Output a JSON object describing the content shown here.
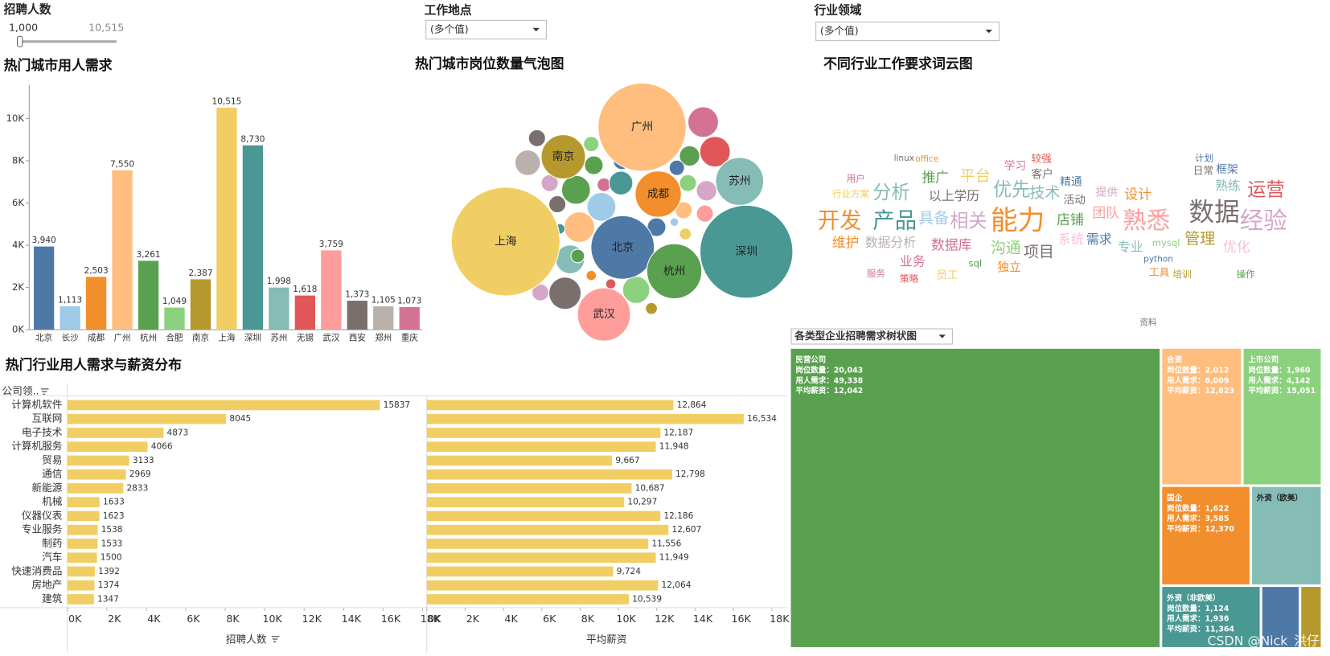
{
  "filters": {
    "recruit_count": {
      "label": "招聘人数",
      "range": [
        {
          "value": 1000,
          "label": "1,000"
        },
        {
          "value": 10515,
          "label": "10,515"
        }
      ]
    },
    "location": {
      "label": "工作地点",
      "value": "(多个值)"
    },
    "industry": {
      "label": "行业领域",
      "value": "(多个值)"
    }
  },
  "chart_data": [
    {
      "type": "bar",
      "title": "热门城市用人需求",
      "categories": [
        "北京",
        "长沙",
        "成都",
        "广州",
        "杭州",
        "合肥",
        "南京",
        "上海",
        "深圳",
        "苏州",
        "无锡",
        "武汉",
        "西安",
        "郑州",
        "重庆"
      ],
      "values": [
        3940,
        1113,
        2503,
        7550,
        3261,
        1049,
        2387,
        10515,
        8730,
        1998,
        1618,
        3759,
        1373,
        1105,
        1073
      ],
      "value_labels": [
        "3,940",
        "1,113",
        "2,503",
        "7,550",
        "3,261",
        "1,049",
        "2,387",
        "10,515",
        "8,730",
        "1,998",
        "1,618",
        "3,759",
        "1,373",
        "1,105",
        "1,073"
      ],
      "colors": [
        "#4e79a7",
        "#a0cbe8",
        "#f28e2b",
        "#ffbe7d",
        "#59a14f",
        "#8cd17d",
        "#b6992d",
        "#f1ce63",
        "#499894",
        "#86bcb6",
        "#e15759",
        "#ff9d9a",
        "#79706e",
        "#bab0ac",
        "#d37295"
      ],
      "ylim": [
        0,
        11600
      ],
      "yticks": [
        {
          "value": 0,
          "label": "0K"
        },
        {
          "value": 2000,
          "label": "2K"
        },
        {
          "value": 4000,
          "label": "4K"
        },
        {
          "value": 6000,
          "label": "6K"
        },
        {
          "value": 8000,
          "label": "8K"
        },
        {
          "value": 10000,
          "label": "10K"
        }
      ]
    },
    {
      "type": "bubble",
      "title": "热门城市岗位数量气泡图",
      "categories": [
        "上海",
        "深圳",
        "广州",
        "北京",
        "杭州",
        "武汉",
        "苏州",
        "成都",
        "南京"
      ],
      "values": [
        4100,
        3000,
        2700,
        1400,
        1050,
        980,
        800,
        740,
        680
      ],
      "colors": [
        "#f1ce63",
        "#499894",
        "#ffbe7d",
        "#4e79a7",
        "#59a14f",
        "#ff9d9a",
        "#86bcb6",
        "#f28e2b",
        "#b6992d"
      ]
    },
    {
      "type": "wordcloud",
      "title": "不同行业工作要求词云图",
      "words": [
        {
          "text": "开发",
          "color": "#f28e2b"
        },
        {
          "text": "产品",
          "color": "#499894"
        },
        {
          "text": "能力",
          "color": "#f28e2b"
        },
        {
          "text": "熟悉",
          "color": "#ff9d9a"
        },
        {
          "text": "数据",
          "color": "#79706e"
        },
        {
          "text": "经验",
          "color": "#d4a6c8"
        },
        {
          "text": "相关",
          "color": "#d4a6c8"
        },
        {
          "text": "具备",
          "color": "#a0cbe8"
        },
        {
          "text": "分析",
          "color": "#86bcb6"
        },
        {
          "text": "优先",
          "color": "#86bcb6"
        },
        {
          "text": "技术",
          "color": "#86bcb6"
        },
        {
          "text": "运营",
          "color": "#e15759"
        },
        {
          "text": "平台",
          "color": "#f1ce63"
        },
        {
          "text": "推广",
          "color": "#59a14f"
        },
        {
          "text": "以上学历",
          "color": "#79706e"
        },
        {
          "text": "团队",
          "color": "#ff9d9a"
        },
        {
          "text": "店铺",
          "color": "#59a14f"
        },
        {
          "text": "管理",
          "color": "#b6992d"
        },
        {
          "text": "优化",
          "color": "#fabfd2"
        },
        {
          "text": "项目",
          "color": "#79706e"
        },
        {
          "text": "沟通",
          "color": "#8cd17d"
        },
        {
          "text": "数据分析",
          "color": "#bab0ac"
        },
        {
          "text": "数据库",
          "color": "#d37295"
        },
        {
          "text": "维护",
          "color": "#f28e2b"
        },
        {
          "text": "需求",
          "color": "#4e79a7"
        },
        {
          "text": "专业",
          "color": "#86bcb6"
        },
        {
          "text": "业务",
          "color": "#d37295"
        },
        {
          "text": "独立",
          "color": "#f28e2b"
        },
        {
          "text": "设计",
          "color": "#f28e2b"
        },
        {
          "text": "熟练",
          "color": "#86bcb6"
        },
        {
          "text": "客户",
          "color": "#79706e"
        },
        {
          "text": "学习",
          "color": "#d37295"
        },
        {
          "text": "较强",
          "color": "#e15759"
        },
        {
          "text": "精通",
          "color": "#4e79a7"
        },
        {
          "text": "活动",
          "color": "#79706e"
        },
        {
          "text": "系统",
          "color": "#fabfd2"
        },
        {
          "text": "mysql",
          "color": "#8cd17d"
        },
        {
          "text": "python",
          "color": "#4e79a7"
        },
        {
          "text": "框架",
          "color": "#4e79a7"
        },
        {
          "text": "日常",
          "color": "#79706e"
        },
        {
          "text": "提供",
          "color": "#d4a6c8"
        },
        {
          "text": "计划",
          "color": "#4e79a7"
        },
        {
          "text": "员工",
          "color": "#f1ce63"
        },
        {
          "text": "服务",
          "color": "#d37295"
        },
        {
          "text": "行业方案",
          "color": "#f1ce63"
        },
        {
          "text": "用户",
          "color": "#d37295"
        },
        {
          "text": "工具",
          "color": "#f28e2b"
        },
        {
          "text": "培训",
          "color": "#b6992d"
        },
        {
          "text": "操作",
          "color": "#59a14f"
        },
        {
          "text": "策略",
          "color": "#e15759"
        },
        {
          "text": "linux",
          "color": "#79706e"
        },
        {
          "text": "office",
          "color": "#f28e2b"
        },
        {
          "text": "sql",
          "color": "#59a14f"
        },
        {
          "text": "资料",
          "color": "#79706e"
        }
      ]
    },
    {
      "type": "hbar",
      "title": "热门行业用人需求与薪资分布",
      "category_label": "公司领..",
      "x_label": "招聘人数",
      "categories": [
        "计算机软件",
        "互联网",
        "电子技术",
        "计算机服务",
        "贸易",
        "通信",
        "新能源",
        "机械",
        "仪器仪表",
        "专业服务",
        "制药",
        "汽车",
        "快速消费品",
        "房地产",
        "建筑"
      ],
      "values": [
        15837,
        8045,
        4873,
        4066,
        3133,
        2969,
        2833,
        1633,
        1623,
        1538,
        1533,
        1500,
        1392,
        1374,
        1347
      ],
      "color": "#f1ce63",
      "xlim": [
        0,
        18000
      ],
      "xticks": [
        {
          "value": 0,
          "label": "0K"
        },
        {
          "value": 2000,
          "label": "2K"
        },
        {
          "value": 4000,
          "label": "4K"
        },
        {
          "value": 6000,
          "label": "6K"
        },
        {
          "value": 8000,
          "label": "8K"
        },
        {
          "value": 10000,
          "label": "10K"
        },
        {
          "value": 12000,
          "label": "12K"
        },
        {
          "value": 14000,
          "label": "14K"
        },
        {
          "value": 16000,
          "label": "16K"
        },
        {
          "value": 18000,
          "label": "18K"
        }
      ]
    },
    {
      "type": "hbar",
      "x_label": "平均薪资",
      "values": [
        12864,
        16534,
        12187,
        11948,
        9667,
        12798,
        10687,
        10297,
        12186,
        12607,
        11556,
        11949,
        9724,
        12064,
        10539
      ],
      "value_labels": [
        "12,864",
        "16,534",
        "12,187",
        "11,948",
        "9,667",
        "12,798",
        "10,687",
        "10,297",
        "12,186",
        "12,607",
        "11,556",
        "11,949",
        "9,724",
        "12,064",
        "10,539"
      ],
      "color": "#f1ce63",
      "xlim": [
        0,
        18000
      ],
      "xticks": [
        {
          "value": 0,
          "label": "0K"
        },
        {
          "value": 2000,
          "label": "2K"
        },
        {
          "value": 4000,
          "label": "4K"
        },
        {
          "value": 6000,
          "label": "6K"
        },
        {
          "value": 8000,
          "label": "8K"
        },
        {
          "value": 10000,
          "label": "10K"
        },
        {
          "value": 12000,
          "label": "12K"
        },
        {
          "value": 14000,
          "label": "14K"
        },
        {
          "value": 16000,
          "label": "16K"
        },
        {
          "value": 18000,
          "label": "18K"
        }
      ]
    },
    {
      "type": "treemap",
      "title": "各类型企业招聘需求树状图",
      "metric_labels": [
        "岗位数量：",
        "用人需求：",
        "平均薪资："
      ],
      "items": [
        {
          "name": "民营公司",
          "color": "#59a14f",
          "values": [
            20043,
            49338,
            12042
          ],
          "value_labels": [
            "20,043",
            "49,338",
            "12,042"
          ]
        },
        {
          "name": "合资",
          "color": "#ffbe7d",
          "values": [
            2012,
            6009,
            12823
          ],
          "value_labels": [
            "2,012",
            "6,009",
            "12,823"
          ]
        },
        {
          "name": "上市公司",
          "color": "#8cd17d",
          "values": [
            1960,
            4142,
            15051
          ],
          "value_labels": [
            "1,960",
            "4,142",
            "15,051"
          ]
        },
        {
          "name": "国企",
          "color": "#f28e2b",
          "values": [
            1622,
            3585,
            12370
          ],
          "value_labels": [
            "1,622",
            "3,585",
            "12,370"
          ]
        },
        {
          "name": "外资（欧美）",
          "color": "#86bcb6"
        },
        {
          "name": "外资（非欧美）",
          "color": "#499894",
          "values": [
            1124,
            1936,
            11364
          ],
          "value_labels": [
            "1,124",
            "1,936",
            "11,364"
          ]
        }
      ]
    }
  ],
  "watermark": "CSDN @Nick_洪仔"
}
